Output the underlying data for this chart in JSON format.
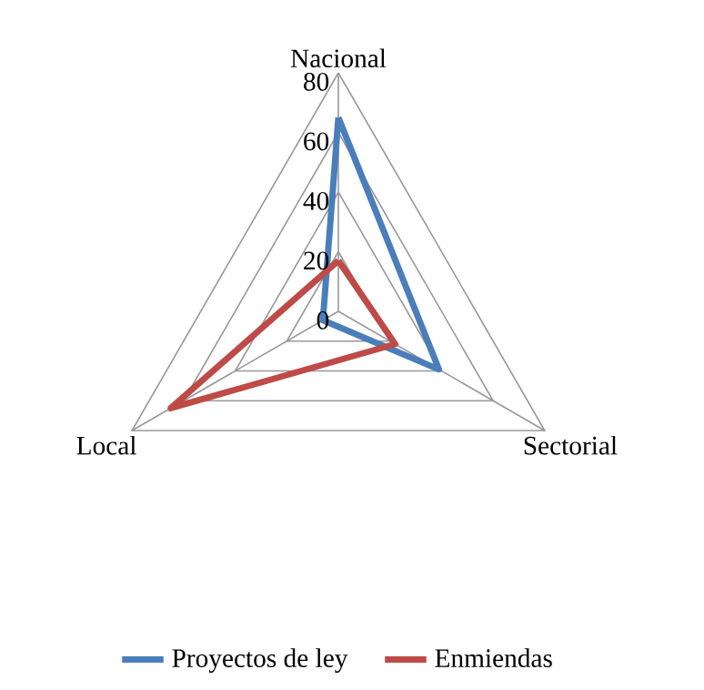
{
  "chart_data": {
    "type": "radar",
    "categories": [
      "Nacional",
      "Sectorial",
      "Local"
    ],
    "series": [
      {
        "name": "Proyectos de ley",
        "color": "#4a7ebb",
        "values": [
          65,
          39,
          6
        ]
      },
      {
        "name": "Enmiendas",
        "color": "#be4b48",
        "values": [
          17,
          22,
          65
        ]
      }
    ],
    "ylim": [
      0,
      80
    ],
    "yticks": [
      0,
      20,
      40,
      60,
      80
    ],
    "grid": true,
    "legend": "bottom",
    "marker": "none",
    "line_style": "solid"
  }
}
